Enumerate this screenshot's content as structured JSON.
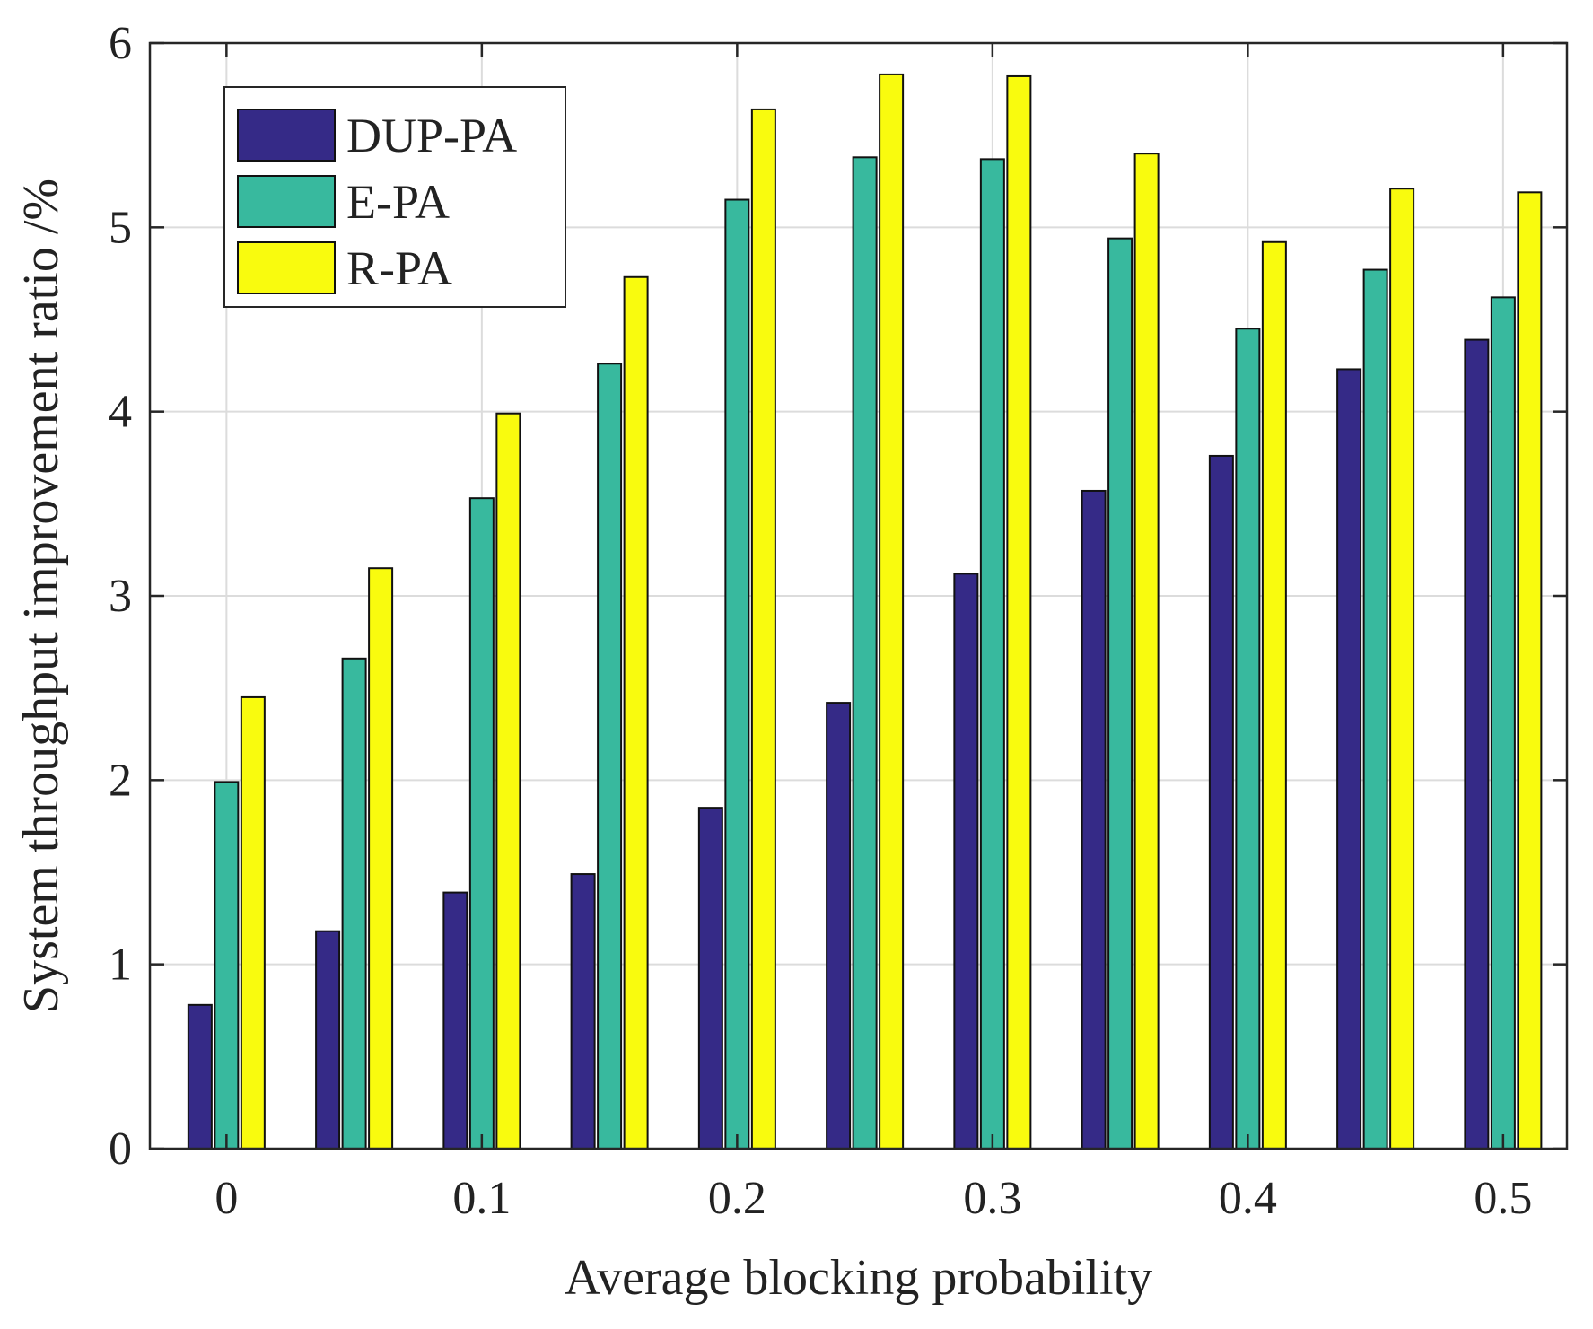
{
  "chart_data": {
    "type": "bar",
    "title": "",
    "xlabel": "Average blocking probability",
    "ylabel": "System throughput improvement ratio /%",
    "categories": [
      "0",
      "0.05",
      "0.1",
      "0.15",
      "0.2",
      "0.25",
      "0.3",
      "0.35",
      "0.4",
      "0.45",
      "0.5"
    ],
    "x_values": [
      0,
      0.05,
      0.1,
      0.15,
      0.2,
      0.25,
      0.3,
      0.35,
      0.4,
      0.45,
      0.5
    ],
    "x_tick_values": [
      0,
      0.1,
      0.2,
      0.3,
      0.4,
      0.5
    ],
    "x_tick_labels": [
      "0",
      "0.1",
      "0.2",
      "0.3",
      "0.4",
      "0.5"
    ],
    "y_tick_values": [
      0,
      1,
      2,
      3,
      4,
      5,
      6
    ],
    "y_tick_labels": [
      "0",
      "1",
      "2",
      "3",
      "4",
      "5",
      "6"
    ],
    "xlim": [
      -0.03,
      0.525
    ],
    "ylim": [
      0,
      6
    ],
    "grid": true,
    "legend_position": "top-left",
    "series": [
      {
        "name": "DUP-PA",
        "color": "#352a87",
        "values": [
          0.78,
          1.18,
          1.39,
          1.49,
          1.85,
          2.42,
          3.12,
          3.57,
          3.76,
          4.23,
          4.39
        ]
      },
      {
        "name": "E-PA",
        "color": "#38b99e",
        "values": [
          1.99,
          2.66,
          3.53,
          4.26,
          5.15,
          5.38,
          5.37,
          4.94,
          4.45,
          4.77,
          4.62
        ]
      },
      {
        "name": "R-PA",
        "color": "#f9fb0e",
        "values": [
          2.45,
          3.15,
          3.99,
          4.73,
          5.64,
          5.83,
          5.82,
          5.4,
          4.92,
          5.21,
          5.19
        ]
      }
    ]
  }
}
